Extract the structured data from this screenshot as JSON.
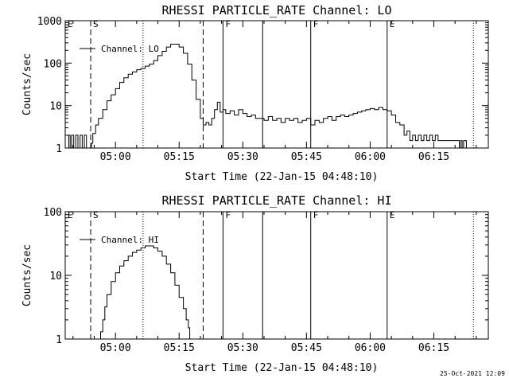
{
  "footer": {
    "timestamp": "25-Oct-2021 12:09"
  },
  "chart_data": [
    {
      "type": "line",
      "title": "RHESSI PARTICLE_RATE Channel: LO",
      "xlabel": "Start Time (22-Jan-15 04:48:10)",
      "ylabel": "Counts/sec",
      "y_scale": "log",
      "ylim": [
        1,
        1000
      ],
      "xlim": [
        "04:48:10",
        "06:27:50"
      ],
      "x_ticks": [
        "05:00",
        "05:15",
        "05:30",
        "05:45",
        "06:00",
        "06:15"
      ],
      "y_ticks": [
        "1",
        "10",
        "100",
        "1000"
      ],
      "legend": {
        "label": "Channel: LO",
        "position": "top-left"
      },
      "markers": [
        {
          "label": "E",
          "time": "04:48:10",
          "style": "solid"
        },
        {
          "label": "S",
          "time": "04:54:10",
          "style": "dashed"
        },
        {
          "label": "",
          "time": "05:06:30",
          "style": "dotted"
        },
        {
          "label": "",
          "time": "05:20:40",
          "style": "dashed"
        },
        {
          "label": "F",
          "time": "05:25:20",
          "style": "solid"
        },
        {
          "label": "",
          "time": "05:34:40",
          "style": "solid"
        },
        {
          "label": "F",
          "time": "05:46:00",
          "style": "solid"
        },
        {
          "label": "E",
          "time": "06:04:00",
          "style": "solid"
        },
        {
          "label": "",
          "time": "06:24:20",
          "style": "dotted"
        }
      ],
      "series": [
        {
          "x": [
            "04:48:20",
            "04:49:00",
            "04:49:20",
            "04:49:40",
            "04:50:10",
            "04:50:40",
            "04:51:10",
            "04:51:40",
            "04:52:10",
            "04:52:40",
            "04:53:10",
            "04:53:40",
            "04:54:00",
            "04:54:10",
            "04:54:20",
            "04:54:40",
            "04:55:20",
            "04:56:00",
            "04:57:00",
            "04:58:00",
            "04:59:00",
            "05:00:00",
            "05:01:00",
            "05:02:00",
            "05:03:00",
            "05:04:00",
            "05:05:00",
            "05:06:00",
            "05:07:00",
            "05:08:00",
            "05:09:00",
            "05:10:00",
            "05:11:00",
            "05:12:00",
            "05:13:00",
            "05:14:00",
            "05:15:00",
            "05:16:00",
            "05:17:00",
            "05:18:00",
            "05:19:00",
            "05:20:00",
            "05:20:40",
            "05:21:20",
            "05:22:00",
            "05:22:40",
            "05:23:20",
            "05:24:00",
            "05:24:40",
            "05:25:20",
            "05:26:00",
            "05:27:00",
            "05:28:00",
            "05:29:00",
            "05:30:00",
            "05:31:00",
            "05:32:00",
            "05:33:00",
            "05:34:00",
            "05:35:00",
            "05:36:00",
            "05:37:00",
            "05:38:00",
            "05:39:00",
            "05:40:00",
            "05:41:00",
            "05:42:00",
            "05:43:00",
            "05:44:00",
            "05:45:00",
            "05:46:00",
            "05:47:00",
            "05:48:00",
            "05:49:00",
            "05:50:00",
            "05:51:00",
            "05:52:00",
            "05:53:00",
            "05:54:00",
            "05:55:00",
            "05:56:00",
            "05:57:00",
            "05:58:00",
            "05:59:00",
            "06:00:00",
            "06:01:00",
            "06:02:00",
            "06:03:00",
            "06:04:00",
            "06:05:00",
            "06:06:00",
            "06:07:00",
            "06:08:00",
            "06:08:40",
            "06:09:20",
            "06:10:00",
            "06:10:40",
            "06:11:20",
            "06:12:00",
            "06:12:40",
            "06:13:20",
            "06:14:00",
            "06:14:40",
            "06:15:20",
            "06:16:00",
            "06:17:00",
            "06:18:00",
            "06:19:00",
            "06:20:00",
            "06:20:40",
            "06:21:00",
            "06:21:20",
            "06:21:40",
            "06:22:00",
            "06:22:40",
            "06:23:20"
          ],
          "y": [
            1,
            2,
            1,
            2,
            1,
            2,
            1,
            2,
            1,
            2,
            1,
            1,
            1,
            1,
            1.3,
            2.2,
            3.5,
            5,
            8,
            13,
            18,
            25,
            35,
            45,
            55,
            62,
            70,
            75,
            85,
            95,
            115,
            150,
            190,
            240,
            280,
            280,
            240,
            170,
            95,
            40,
            14,
            5,
            3.5,
            4,
            3.5,
            5,
            8,
            12,
            7,
            8,
            6.5,
            7.5,
            6,
            8,
            6.5,
            5.5,
            6,
            5,
            5,
            4.5,
            5.5,
            4.5,
            5,
            4,
            5,
            4.5,
            5,
            4,
            4.5,
            5,
            3.5,
            4.5,
            4,
            5,
            5.5,
            4.5,
            5.5,
            6,
            5.5,
            6,
            6.5,
            7,
            7.5,
            8,
            8.5,
            8,
            9,
            8,
            7.5,
            6,
            4,
            3.5,
            2,
            2.5,
            1.5,
            2,
            1.5,
            2,
            1.5,
            2,
            1.5,
            2,
            1.5,
            2,
            1.5,
            1.5,
            1.5,
            1.5,
            1.5,
            1.5,
            1,
            1.5,
            1,
            1.5,
            1,
            1
          ]
        }
      ]
    },
    {
      "type": "line",
      "title": "RHESSI PARTICLE_RATE Channel: HI",
      "xlabel": "Start Time (22-Jan-15 04:48:10)",
      "ylabel": "Counts/sec",
      "y_scale": "log",
      "ylim": [
        1,
        100
      ],
      "xlim": [
        "04:48:10",
        "06:27:50"
      ],
      "x_ticks": [
        "05:00",
        "05:15",
        "05:30",
        "05:45",
        "06:00",
        "06:15"
      ],
      "y_ticks": [
        "1",
        "10",
        "100"
      ],
      "legend": {
        "label": "Channel: HI",
        "position": "top-left"
      },
      "markers": [
        {
          "label": "E",
          "time": "04:48:10",
          "style": "solid"
        },
        {
          "label": "S",
          "time": "04:54:10",
          "style": "dashed"
        },
        {
          "label": "",
          "time": "05:06:30",
          "style": "dotted"
        },
        {
          "label": "",
          "time": "05:20:40",
          "style": "dashed"
        },
        {
          "label": "F",
          "time": "05:25:20",
          "style": "solid"
        },
        {
          "label": "",
          "time": "05:34:40",
          "style": "solid"
        },
        {
          "label": "F",
          "time": "05:46:00",
          "style": "solid"
        },
        {
          "label": "E",
          "time": "06:04:00",
          "style": "solid"
        },
        {
          "label": "",
          "time": "06:24:20",
          "style": "dotted"
        }
      ],
      "series": [
        {
          "x": [
            "04:56:10",
            "04:56:30",
            "04:57:00",
            "04:57:30",
            "04:58:00",
            "04:59:00",
            "05:00:00",
            "05:01:00",
            "05:02:00",
            "05:03:00",
            "05:04:00",
            "05:05:00",
            "05:06:00",
            "05:07:00",
            "05:08:00",
            "05:09:00",
            "05:10:00",
            "05:11:00",
            "05:12:00",
            "05:13:00",
            "05:14:00",
            "05:15:00",
            "05:16:00",
            "05:16:40",
            "05:17:10",
            "05:17:30"
          ],
          "y": [
            1,
            1.3,
            2,
            3.2,
            5,
            8,
            11,
            14,
            17,
            20,
            23,
            25,
            27,
            29,
            29,
            27,
            24,
            20,
            15,
            11,
            7,
            4.5,
            3,
            2,
            1.5,
            1
          ]
        }
      ]
    }
  ]
}
